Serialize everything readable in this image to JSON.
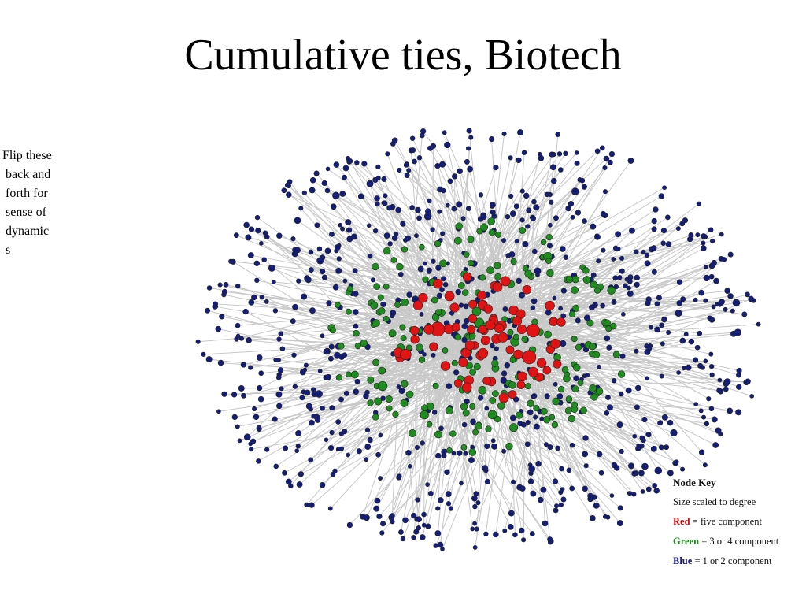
{
  "title": "Cumulative ties, Biotech",
  "side_note": "Flip these back and forth for sense of dynamics",
  "node_key": {
    "heading": "Node Key",
    "size_note": "Size scaled to degree",
    "items": [
      {
        "label": "Red",
        "text": "= five component"
      },
      {
        "label": "Green",
        "text": "= 3 or 4 component"
      },
      {
        "label": "Blue",
        "text": "= 1 or 2 component"
      }
    ]
  }
}
